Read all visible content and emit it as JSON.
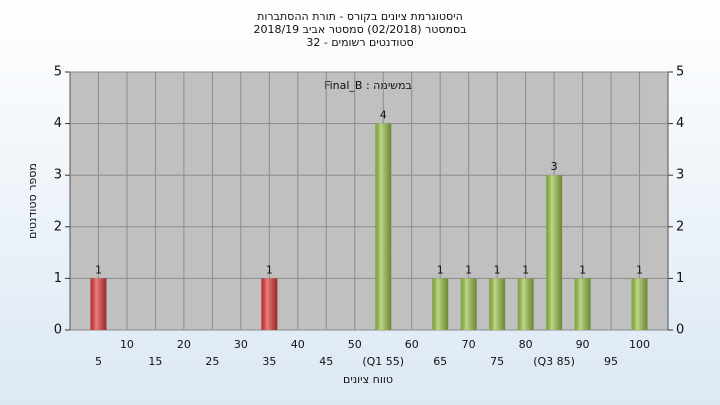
{
  "chart_data": {
    "type": "bar",
    "title": [
      "היסטוגרמת ציונים בקורס - תורת ההסתברות",
      "בסמסטר (02/2018) סמסטר אביב 2018/19",
      "סטודנטים רשומים - 32"
    ],
    "annotation": "במשימה : Final_B",
    "x_label": "טווח ציונים",
    "y_label": "מספר סטודנטים",
    "x": [
      5,
      35,
      55,
      65,
      70,
      75,
      80,
      85,
      90,
      100
    ],
    "values": [
      1,
      1,
      4,
      1,
      1,
      1,
      1,
      3,
      1,
      1
    ],
    "colors": [
      "#e03a3a",
      "#e03a3a",
      "#9bc24a",
      "#9bc24a",
      "#9bc24a",
      "#9bc24a",
      "#9bc24a",
      "#9bc24a",
      "#9bc24a",
      "#9bc24a"
    ],
    "xlim": [
      0,
      105
    ],
    "xticks": [
      5,
      10,
      15,
      20,
      25,
      30,
      35,
      40,
      45,
      50,
      {
        "value": 55,
        "label": "(Q1 55)"
      },
      60,
      65,
      70,
      75,
      80,
      {
        "value": 85,
        "label": "(Q3 85)"
      },
      90,
      95,
      100
    ],
    "ylim": [
      0,
      5
    ],
    "yticks": [
      0,
      1,
      2,
      3,
      4,
      5
    ],
    "grid": true
  }
}
